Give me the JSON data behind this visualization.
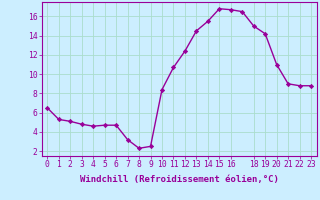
{
  "x": [
    0,
    1,
    2,
    3,
    4,
    5,
    6,
    7,
    8,
    9,
    10,
    11,
    12,
    13,
    14,
    15,
    16,
    17,
    18,
    19,
    20,
    21,
    22,
    23
  ],
  "y": [
    6.5,
    5.3,
    5.1,
    4.8,
    4.6,
    4.7,
    4.7,
    3.2,
    2.3,
    2.5,
    8.4,
    10.7,
    12.4,
    14.5,
    15.5,
    16.8,
    16.7,
    16.5,
    15.0,
    14.2,
    11.0,
    9.0,
    8.8,
    8.8
  ],
  "line_color": "#990099",
  "marker": "D",
  "marker_size": 2.2,
  "linewidth": 1.0,
  "xlabel": "Windchill (Refroidissement éolien,°C)",
  "xlim": [
    -0.5,
    23.5
  ],
  "ylim": [
    1.5,
    17.5
  ],
  "yticks": [
    2,
    4,
    6,
    8,
    10,
    12,
    14,
    16
  ],
  "xticks": [
    0,
    1,
    2,
    3,
    4,
    5,
    6,
    7,
    8,
    9,
    10,
    11,
    12,
    13,
    14,
    15,
    16,
    18,
    19,
    20,
    21,
    22,
    23
  ],
  "bg_color": "#cceeff",
  "grid_color": "#aaddcc",
  "tick_color": "#990099",
  "label_color": "#990099",
  "xlabel_fontsize": 6.5,
  "tick_fontsize": 5.8
}
